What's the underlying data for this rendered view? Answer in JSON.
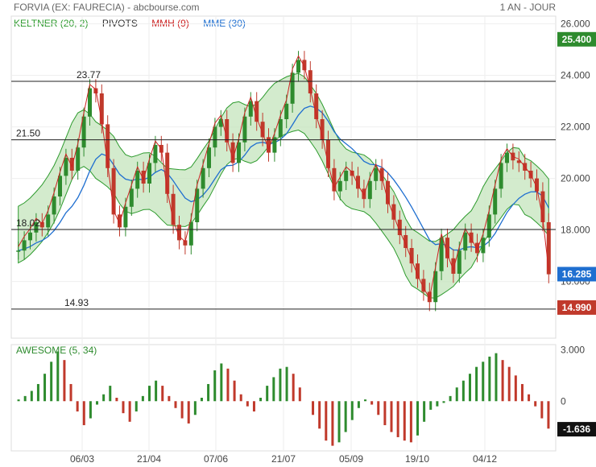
{
  "header": {
    "title": "FORVIA (EX: FAURECIA) - abcbourse.com",
    "period": "1 AN - JOUR"
  },
  "legend": {
    "keltner": "KELTNER (20, 2)",
    "pivots": "PIVOTS",
    "mmh": "MMH (9)",
    "mme": "MME (30)"
  },
  "colors": {
    "keltner": "#2e9b2e",
    "pivots": "#333333",
    "mmh": "#cc2222",
    "mme": "#1f6fd0",
    "up": "#2e8b2e",
    "down": "#c0392b",
    "band_fill": "#c8e6c0"
  },
  "oscillator": {
    "title": "AWESOME (5, 34)",
    "ticks": [
      "3.000",
      "0"
    ],
    "last_value": "-1.636"
  },
  "chart_data": {
    "type": "candlestick",
    "title": "FORVIA (EX: FAURECIA)",
    "y_ticks": [
      "26.000",
      "24.000",
      "22.000",
      "20.000",
      "18.000",
      "16.000"
    ],
    "ylim": [
      13.8,
      26.3
    ],
    "x_ticks": [
      "06/03",
      "21/04",
      "07/06",
      "21/07",
      "05/09",
      "19/10",
      "04/12"
    ],
    "pivots": [
      {
        "label": "23.77",
        "value": 23.77
      },
      {
        "label": "21.50",
        "value": 21.5
      },
      {
        "label": "18.02",
        "value": 18.02
      },
      {
        "label": "14.93",
        "value": 14.93
      }
    ],
    "last_price": "16.285",
    "price_tags": [
      "25.400",
      "14.990"
    ],
    "close_series": [
      17.2,
      17.6,
      17.9,
      18.3,
      18.1,
      18.6,
      19.3,
      20.1,
      20.8,
      20.3,
      21.2,
      22.4,
      23.5,
      23.3,
      22.1,
      20.4,
      18.6,
      18.1,
      18.9,
      19.6,
      20.3,
      19.8,
      20.6,
      21.3,
      21.0,
      19.4,
      18.2,
      17.6,
      17.4,
      18.3,
      19.6,
      20.4,
      21.2,
      22.0,
      22.3,
      21.4,
      20.6,
      21.4,
      22.4,
      23.0,
      22.2,
      21.6,
      21.0,
      21.6,
      22.3,
      22.9,
      24.1,
      24.6,
      24.2,
      23.3,
      22.3,
      21.5,
      20.4,
      19.5,
      19.9,
      20.3,
      20.1,
      19.6,
      19.2,
      19.9,
      20.4,
      19.9,
      19.0,
      18.4,
      17.8,
      17.3,
      16.7,
      16.1,
      15.6,
      15.2,
      16.4,
      17.7,
      16.9,
      16.3,
      17.2,
      17.9,
      17.5,
      17.1,
      17.7,
      18.6,
      19.6,
      20.6,
      21.0,
      20.7,
      20.6,
      20.3,
      20.0,
      19.5,
      18.3,
      16.28
    ],
    "awesome_series": [
      0.1,
      0.3,
      0.6,
      1.0,
      1.6,
      2.3,
      2.9,
      2.4,
      1.0,
      -0.6,
      -1.4,
      -1.0,
      -0.2,
      0.4,
      0.9,
      0.2,
      -0.7,
      -1.2,
      -0.6,
      0.3,
      0.9,
      1.2,
      0.9,
      0.3,
      -0.4,
      -1.0,
      -1.3,
      -0.8,
      0.2,
      1.0,
      1.8,
      2.2,
      1.9,
      1.2,
      0.4,
      -0.3,
      -0.6,
      0.2,
      0.9,
      1.4,
      1.9,
      2.0,
      1.6,
      0.8,
      0.0,
      -0.8,
      -1.6,
      -2.3,
      -2.6,
      -2.4,
      -1.8,
      -1.1,
      -0.4,
      0.1,
      -0.2,
      -0.8,
      -1.4,
      -1.8,
      -2.1,
      -2.3,
      -2.4,
      -2.0,
      -1.2,
      -0.5,
      -0.3,
      -0.1,
      0.3,
      0.8,
      1.2,
      1.6,
      2.0,
      2.3,
      2.6,
      2.8,
      2.4,
      2.0,
      1.5,
      1.0,
      0.4,
      -0.3,
      -1.0,
      -1.6
    ],
    "awesome_ylim": [
      -2.9,
      3.3
    ]
  }
}
